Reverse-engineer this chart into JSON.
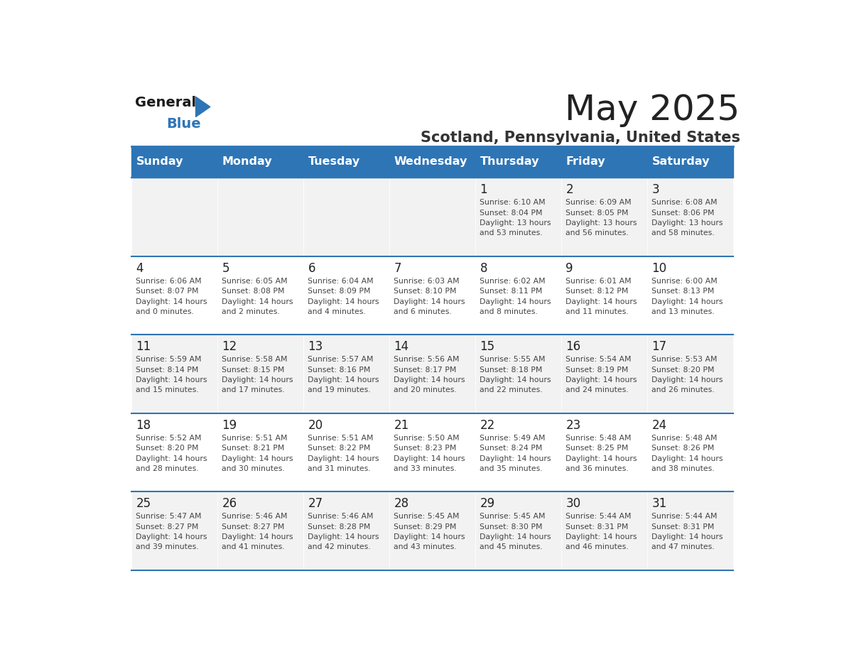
{
  "title": "May 2025",
  "subtitle": "Scotland, Pennsylvania, United States",
  "days_of_week": [
    "Sunday",
    "Monday",
    "Tuesday",
    "Wednesday",
    "Thursday",
    "Friday",
    "Saturday"
  ],
  "header_bg": "#2E75B6",
  "header_text": "#FFFFFF",
  "row_bg_light": "#FFFFFF",
  "row_bg_dark": "#F2F2F2",
  "cell_border": "#2E75B6",
  "text_color": "#333333",
  "day_num_color": "#222222",
  "title_color": "#222222",
  "subtitle_color": "#333333",
  "logo_general_color": "#1a1a1a",
  "logo_blue_color": "#2E75B6",
  "weeks": [
    {
      "days": [
        {
          "day": null,
          "info": null
        },
        {
          "day": null,
          "info": null
        },
        {
          "day": null,
          "info": null
        },
        {
          "day": null,
          "info": null
        },
        {
          "day": 1,
          "info": "Sunrise: 6:10 AM\nSunset: 8:04 PM\nDaylight: 13 hours\nand 53 minutes."
        },
        {
          "day": 2,
          "info": "Sunrise: 6:09 AM\nSunset: 8:05 PM\nDaylight: 13 hours\nand 56 minutes."
        },
        {
          "day": 3,
          "info": "Sunrise: 6:08 AM\nSunset: 8:06 PM\nDaylight: 13 hours\nand 58 minutes."
        }
      ]
    },
    {
      "days": [
        {
          "day": 4,
          "info": "Sunrise: 6:06 AM\nSunset: 8:07 PM\nDaylight: 14 hours\nand 0 minutes."
        },
        {
          "day": 5,
          "info": "Sunrise: 6:05 AM\nSunset: 8:08 PM\nDaylight: 14 hours\nand 2 minutes."
        },
        {
          "day": 6,
          "info": "Sunrise: 6:04 AM\nSunset: 8:09 PM\nDaylight: 14 hours\nand 4 minutes."
        },
        {
          "day": 7,
          "info": "Sunrise: 6:03 AM\nSunset: 8:10 PM\nDaylight: 14 hours\nand 6 minutes."
        },
        {
          "day": 8,
          "info": "Sunrise: 6:02 AM\nSunset: 8:11 PM\nDaylight: 14 hours\nand 8 minutes."
        },
        {
          "day": 9,
          "info": "Sunrise: 6:01 AM\nSunset: 8:12 PM\nDaylight: 14 hours\nand 11 minutes."
        },
        {
          "day": 10,
          "info": "Sunrise: 6:00 AM\nSunset: 8:13 PM\nDaylight: 14 hours\nand 13 minutes."
        }
      ]
    },
    {
      "days": [
        {
          "day": 11,
          "info": "Sunrise: 5:59 AM\nSunset: 8:14 PM\nDaylight: 14 hours\nand 15 minutes."
        },
        {
          "day": 12,
          "info": "Sunrise: 5:58 AM\nSunset: 8:15 PM\nDaylight: 14 hours\nand 17 minutes."
        },
        {
          "day": 13,
          "info": "Sunrise: 5:57 AM\nSunset: 8:16 PM\nDaylight: 14 hours\nand 19 minutes."
        },
        {
          "day": 14,
          "info": "Sunrise: 5:56 AM\nSunset: 8:17 PM\nDaylight: 14 hours\nand 20 minutes."
        },
        {
          "day": 15,
          "info": "Sunrise: 5:55 AM\nSunset: 8:18 PM\nDaylight: 14 hours\nand 22 minutes."
        },
        {
          "day": 16,
          "info": "Sunrise: 5:54 AM\nSunset: 8:19 PM\nDaylight: 14 hours\nand 24 minutes."
        },
        {
          "day": 17,
          "info": "Sunrise: 5:53 AM\nSunset: 8:20 PM\nDaylight: 14 hours\nand 26 minutes."
        }
      ]
    },
    {
      "days": [
        {
          "day": 18,
          "info": "Sunrise: 5:52 AM\nSunset: 8:20 PM\nDaylight: 14 hours\nand 28 minutes."
        },
        {
          "day": 19,
          "info": "Sunrise: 5:51 AM\nSunset: 8:21 PM\nDaylight: 14 hours\nand 30 minutes."
        },
        {
          "day": 20,
          "info": "Sunrise: 5:51 AM\nSunset: 8:22 PM\nDaylight: 14 hours\nand 31 minutes."
        },
        {
          "day": 21,
          "info": "Sunrise: 5:50 AM\nSunset: 8:23 PM\nDaylight: 14 hours\nand 33 minutes."
        },
        {
          "day": 22,
          "info": "Sunrise: 5:49 AM\nSunset: 8:24 PM\nDaylight: 14 hours\nand 35 minutes."
        },
        {
          "day": 23,
          "info": "Sunrise: 5:48 AM\nSunset: 8:25 PM\nDaylight: 14 hours\nand 36 minutes."
        },
        {
          "day": 24,
          "info": "Sunrise: 5:48 AM\nSunset: 8:26 PM\nDaylight: 14 hours\nand 38 minutes."
        }
      ]
    },
    {
      "days": [
        {
          "day": 25,
          "info": "Sunrise: 5:47 AM\nSunset: 8:27 PM\nDaylight: 14 hours\nand 39 minutes."
        },
        {
          "day": 26,
          "info": "Sunrise: 5:46 AM\nSunset: 8:27 PM\nDaylight: 14 hours\nand 41 minutes."
        },
        {
          "day": 27,
          "info": "Sunrise: 5:46 AM\nSunset: 8:28 PM\nDaylight: 14 hours\nand 42 minutes."
        },
        {
          "day": 28,
          "info": "Sunrise: 5:45 AM\nSunset: 8:29 PM\nDaylight: 14 hours\nand 43 minutes."
        },
        {
          "day": 29,
          "info": "Sunrise: 5:45 AM\nSunset: 8:30 PM\nDaylight: 14 hours\nand 45 minutes."
        },
        {
          "day": 30,
          "info": "Sunrise: 5:44 AM\nSunset: 8:31 PM\nDaylight: 14 hours\nand 46 minutes."
        },
        {
          "day": 31,
          "info": "Sunrise: 5:44 AM\nSunset: 8:31 PM\nDaylight: 14 hours\nand 47 minutes."
        }
      ]
    }
  ]
}
